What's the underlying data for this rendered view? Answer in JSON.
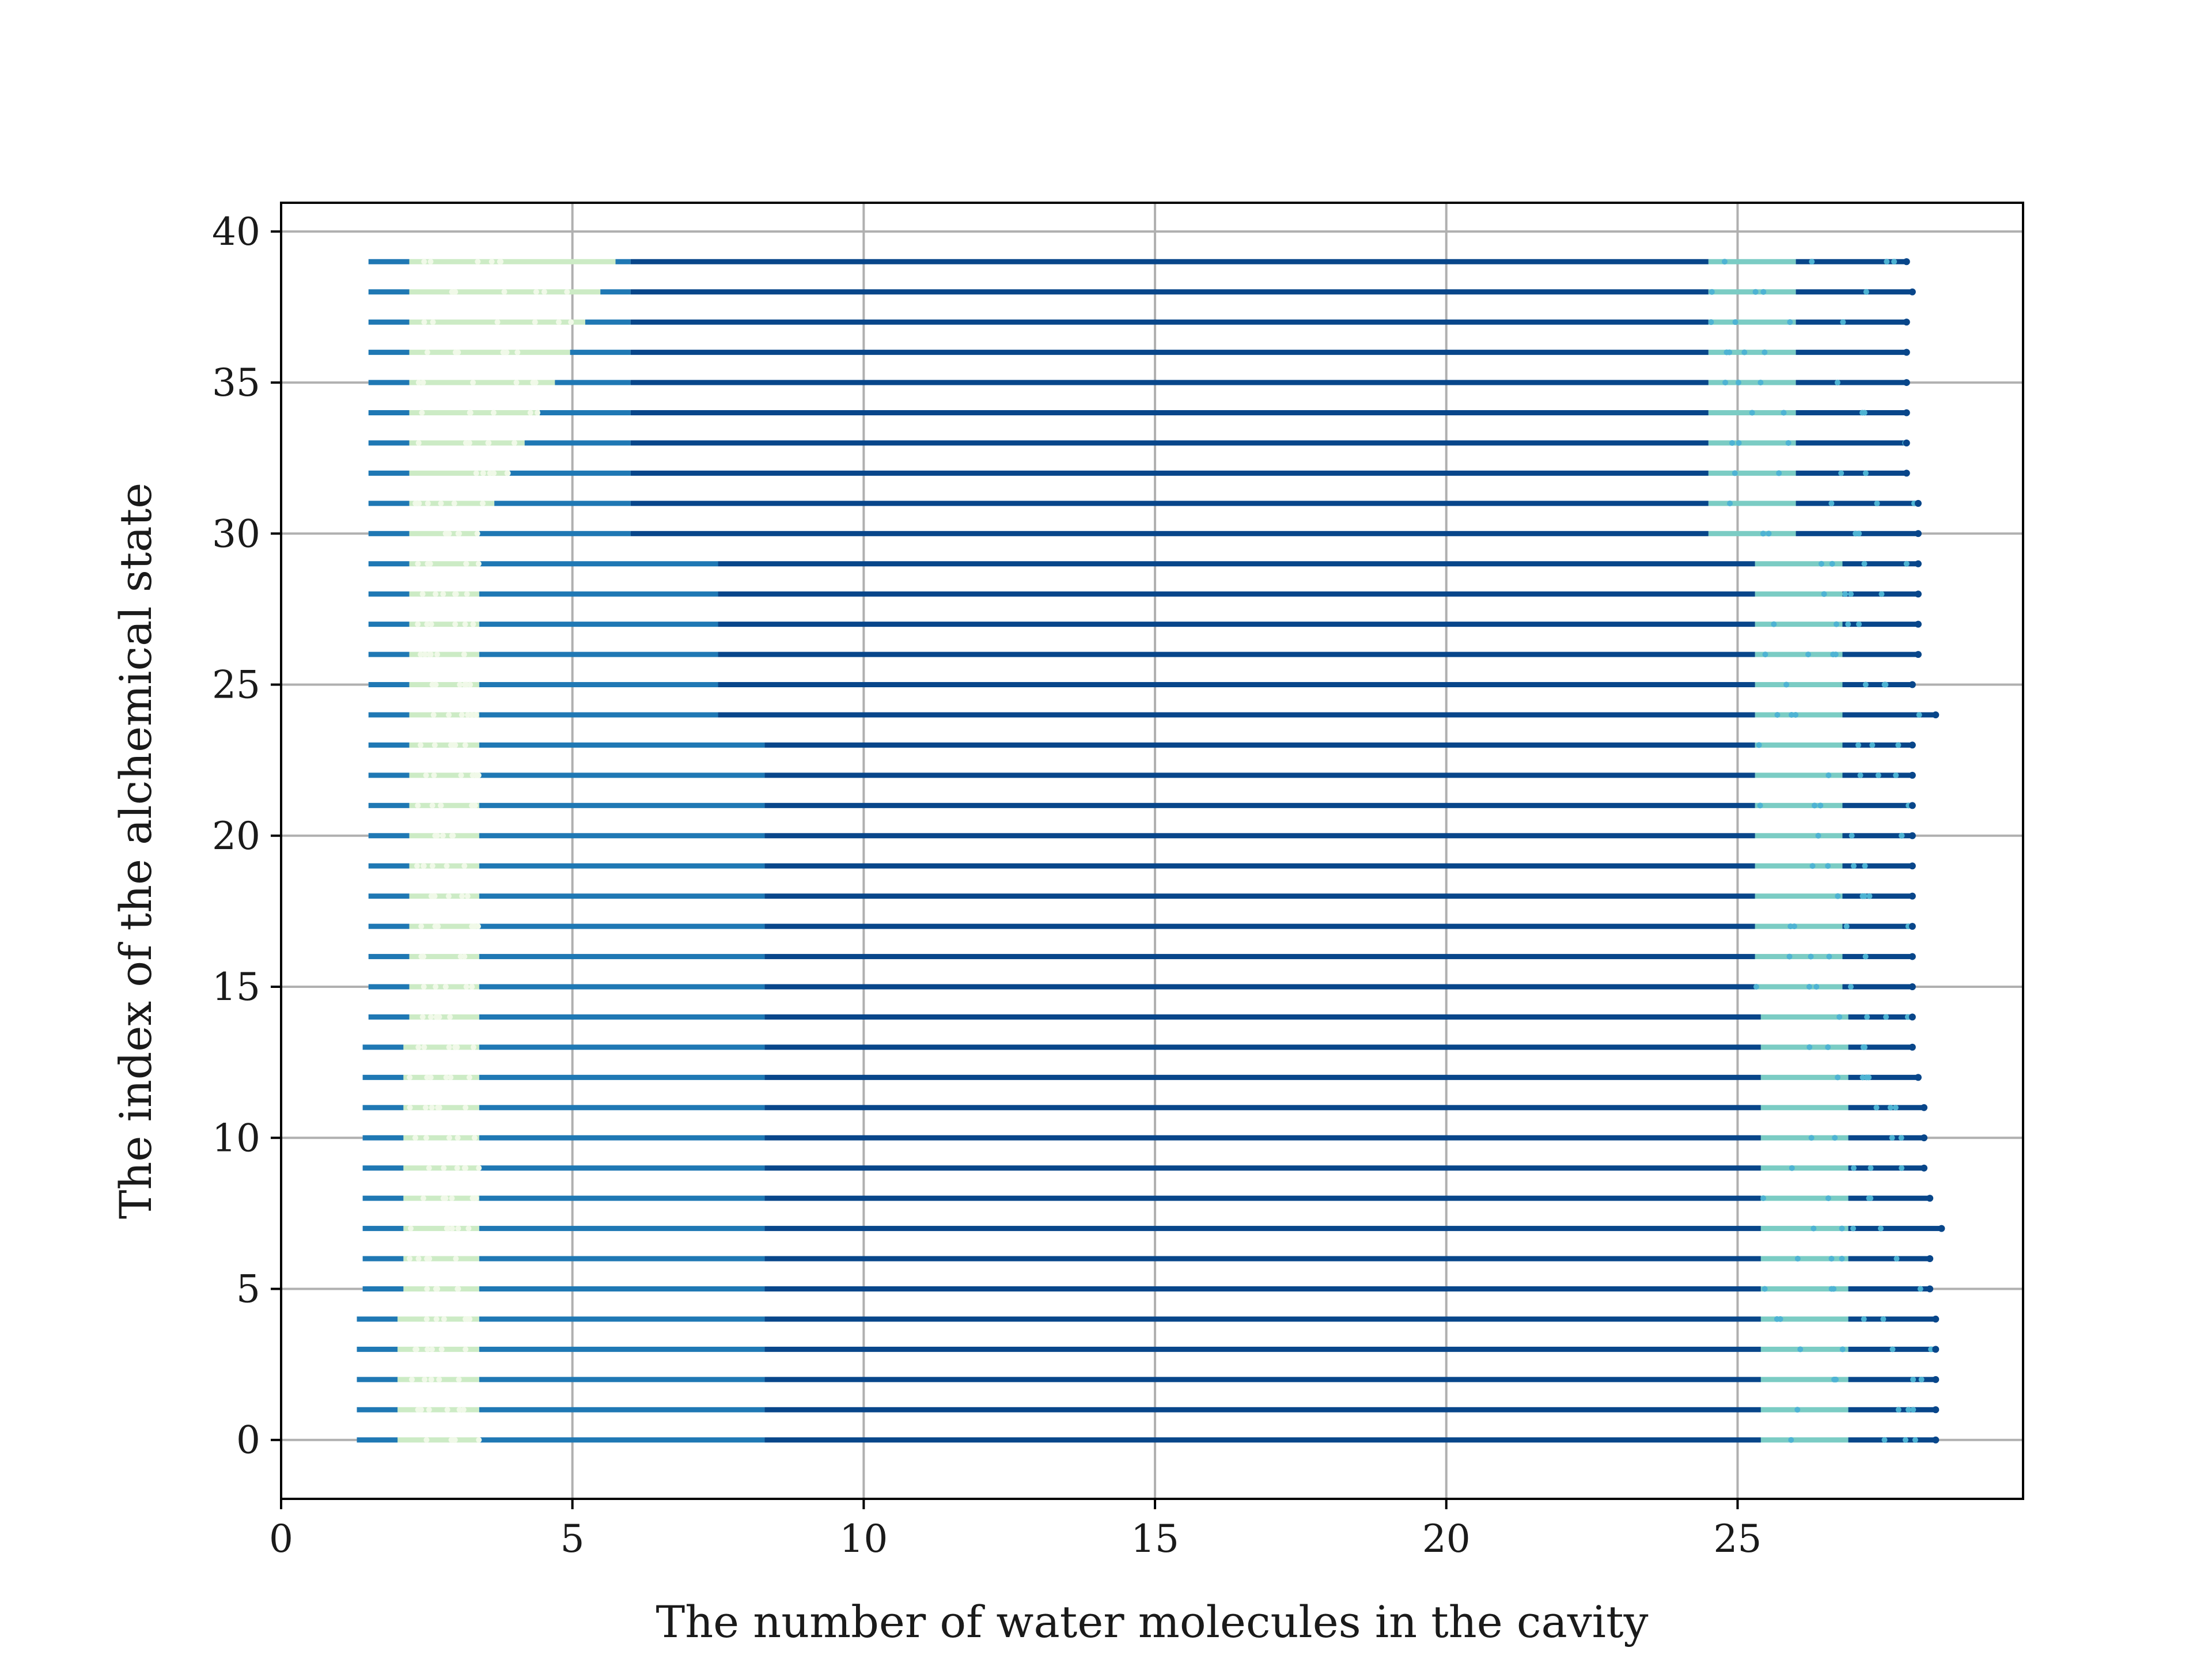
{
  "chart_data": {
    "type": "scatter",
    "title": "",
    "xlabel": "The number of water molecules in the cavity",
    "ylabel": "The index of the alchemical state",
    "xlim": [
      0,
      29.9
    ],
    "ylim": [
      -1.95,
      40.95
    ],
    "x_ticks": [
      0,
      5,
      10,
      15,
      20,
      25
    ],
    "y_ticks": [
      0,
      5,
      10,
      15,
      20,
      25,
      30,
      35,
      40
    ],
    "x_tick_labels": [
      "0",
      "5",
      "10",
      "15",
      "20",
      "25"
    ],
    "y_tick_labels": [
      "0",
      "5",
      "10",
      "15",
      "20",
      "25",
      "30",
      "35",
      "40"
    ],
    "grid": true,
    "legend": "none",
    "colormap": "GnBu",
    "state_indices": [
      0,
      1,
      2,
      3,
      4,
      5,
      6,
      7,
      8,
      9,
      10,
      11,
      12,
      13,
      14,
      15,
      16,
      17,
      18,
      19,
      20,
      21,
      22,
      23,
      24,
      25,
      26,
      27,
      28,
      29,
      30,
      31,
      32,
      33,
      34,
      35,
      36,
      37,
      38,
      39
    ],
    "state_x_ranges": [
      [
        1.3,
        28.4
      ],
      [
        1.3,
        28.4
      ],
      [
        1.3,
        28.4
      ],
      [
        1.3,
        28.4
      ],
      [
        1.3,
        28.4
      ],
      [
        1.4,
        28.3
      ],
      [
        1.4,
        28.3
      ],
      [
        1.4,
        28.5
      ],
      [
        1.4,
        28.3
      ],
      [
        1.4,
        28.2
      ],
      [
        1.4,
        28.2
      ],
      [
        1.4,
        28.2
      ],
      [
        1.4,
        28.1
      ],
      [
        1.4,
        28.0
      ],
      [
        1.5,
        28.0
      ],
      [
        1.5,
        28.0
      ],
      [
        1.5,
        28.0
      ],
      [
        1.5,
        28.0
      ],
      [
        1.5,
        28.0
      ],
      [
        1.5,
        28.0
      ],
      [
        1.5,
        28.0
      ],
      [
        1.5,
        28.0
      ],
      [
        1.5,
        28.0
      ],
      [
        1.5,
        28.0
      ],
      [
        1.5,
        28.4
      ],
      [
        1.5,
        28.0
      ],
      [
        1.5,
        28.1
      ],
      [
        1.5,
        28.1
      ],
      [
        1.5,
        28.1
      ],
      [
        1.5,
        28.1
      ],
      [
        1.5,
        28.1
      ],
      [
        1.5,
        28.1
      ],
      [
        1.5,
        27.9
      ],
      [
        1.5,
        27.9
      ],
      [
        1.5,
        27.9
      ],
      [
        1.5,
        27.9
      ],
      [
        1.5,
        27.9
      ],
      [
        1.5,
        27.9
      ],
      [
        1.5,
        28.0
      ],
      [
        1.5,
        27.9
      ]
    ],
    "color_scale": "point density along each state (light green = sparse, dark blue = dense)"
  },
  "colors": {
    "dense": "#08468a",
    "mid": "#1f78b4",
    "light_blue": "#4eb3d3",
    "teal": "#7bccc4",
    "light_green": "#ccebc5",
    "pale": "#f0f9e8",
    "grid": "#b0b0b0",
    "axes": "#000000"
  }
}
